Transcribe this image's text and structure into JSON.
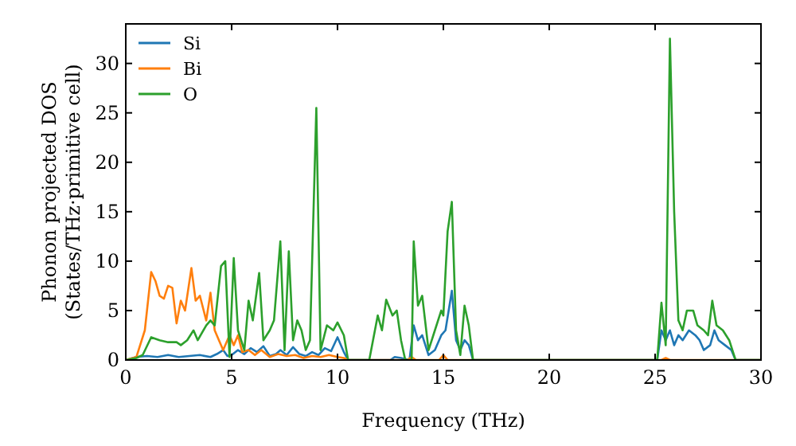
{
  "chart_data": {
    "type": "line",
    "xlabel": "Frequency (THz)",
    "ylabel": "Phonon projected DOS\n(States/THz·primitive cell)",
    "xlim": [
      0,
      30
    ],
    "ylim": [
      0,
      34
    ],
    "xticks": [
      0,
      5,
      10,
      15,
      20,
      25,
      30
    ],
    "yticks": [
      0,
      5,
      10,
      15,
      20,
      25,
      30
    ],
    "legend": "top left",
    "grid": false,
    "series": [
      {
        "name": "Si",
        "color": "#1f77b4",
        "x": [
          0,
          0.5,
          1,
          1.5,
          2,
          2.5,
          3,
          3.5,
          4,
          4.3,
          4.6,
          4.8,
          5,
          5.3,
          5.6,
          5.9,
          6.2,
          6.5,
          6.8,
          7.1,
          7.3,
          7.6,
          7.9,
          8.2,
          8.5,
          8.8,
          9.1,
          9.4,
          9.7,
          10,
          10.3,
          10.5,
          12.5,
          12.7,
          13,
          13.4,
          13.6,
          13.8,
          14,
          14.3,
          14.6,
          14.9,
          15.1,
          15.4,
          15.6,
          15.8,
          16,
          16.2,
          16.4,
          25.1,
          25.3,
          25.5,
          25.7,
          25.9,
          26.1,
          26.3,
          26.6,
          26.9,
          27.1,
          27.3,
          27.6,
          27.8,
          28,
          28.3,
          28.6,
          28.8,
          30
        ],
        "values": [
          0,
          0.3,
          0.4,
          0.3,
          0.5,
          0.3,
          0.4,
          0.5,
          0.3,
          0.6,
          1,
          0.4,
          0.5,
          1,
          0.6,
          1.2,
          0.8,
          1.4,
          0.4,
          0.6,
          1,
          0.5,
          1.3,
          0.6,
          0.4,
          0.8,
          0.5,
          1.2,
          0.9,
          2.3,
          0.8,
          0,
          0,
          0.3,
          0.2,
          0,
          3.5,
          2,
          2.5,
          0.5,
          1,
          2.5,
          3,
          7,
          2,
          1,
          2,
          1.5,
          0,
          0,
          3,
          2,
          3,
          1.5,
          2.5,
          2,
          3,
          2.5,
          2,
          1,
          1.5,
          3,
          2,
          1.5,
          1,
          0,
          0
        ]
      },
      {
        "name": "Bi",
        "color": "#ff7f0e",
        "x": [
          0,
          0.5,
          0.9,
          1.2,
          1.4,
          1.6,
          1.8,
          2,
          2.2,
          2.4,
          2.6,
          2.8,
          3.1,
          3.3,
          3.5,
          3.8,
          4,
          4.2,
          4.4,
          4.6,
          4.9,
          5.1,
          5.3,
          5.5,
          5.8,
          6.1,
          6.4,
          6.8,
          7.2,
          7.6,
          8,
          8.4,
          8.8,
          9.2,
          9.6,
          10,
          10.3,
          10.5,
          13.3,
          13.5,
          13.7,
          14.8,
          15,
          15.2,
          25.3,
          25.5,
          25.7,
          30
        ],
        "values": [
          0,
          0.3,
          3,
          8.9,
          8,
          6.5,
          6.2,
          7.5,
          7.3,
          3.7,
          6,
          5,
          9.3,
          6,
          6.5,
          4,
          6.8,
          3,
          2,
          1,
          2.5,
          1.5,
          2.5,
          0.8,
          1,
          0.5,
          1,
          0.3,
          0.6,
          0.4,
          0.5,
          0.2,
          0.4,
          0.3,
          0.5,
          0.3,
          0.2,
          0,
          0,
          0.3,
          0,
          0,
          0.5,
          0,
          0,
          0.2,
          0,
          0
        ]
      },
      {
        "name": "O",
        "color": "#2ca02c",
        "x": [
          0,
          0.5,
          0.8,
          1.2,
          1.6,
          2,
          2.4,
          2.6,
          2.9,
          3.2,
          3.4,
          3.8,
          4,
          4.2,
          4.5,
          4.7,
          4.9,
          5.1,
          5.3,
          5.6,
          5.8,
          6,
          6.3,
          6.5,
          6.8,
          7,
          7.3,
          7.5,
          7.7,
          7.9,
          8.1,
          8.3,
          8.5,
          8.7,
          9,
          9.2,
          9.5,
          9.8,
          10,
          10.3,
          10.5,
          11.5,
          11.9,
          12.1,
          12.3,
          12.6,
          12.8,
          13,
          13.2,
          13.5,
          13.6,
          13.8,
          14,
          14.3,
          14.6,
          14.9,
          15,
          15.2,
          15.4,
          15.6,
          15.8,
          16,
          16.2,
          16.4,
          25.1,
          25.3,
          25.5,
          25.7,
          25.9,
          26.1,
          26.3,
          26.5,
          26.8,
          27,
          27.3,
          27.5,
          27.7,
          27.9,
          28.2,
          28.5,
          28.8,
          30
        ],
        "values": [
          0,
          0.2,
          0.5,
          2.3,
          2,
          1.8,
          1.8,
          1.5,
          2,
          3,
          2,
          3.5,
          4,
          3.5,
          9.5,
          10,
          0.3,
          10.3,
          3,
          1,
          6,
          4,
          8.8,
          2,
          3,
          4,
          12,
          1,
          11,
          2,
          4,
          3,
          1,
          2,
          25.5,
          1,
          3.5,
          3,
          3.8,
          2.5,
          0,
          0,
          4.5,
          3,
          6.1,
          4.5,
          5,
          2,
          0,
          0,
          12,
          5.5,
          6.5,
          1,
          3,
          5,
          4.5,
          13,
          16,
          3,
          0.5,
          5.5,
          3.5,
          0,
          0,
          5.8,
          1.5,
          32.5,
          15,
          4,
          3,
          5,
          5,
          3.5,
          3,
          2.5,
          6,
          3.5,
          3,
          2,
          0,
          0
        ]
      }
    ]
  }
}
